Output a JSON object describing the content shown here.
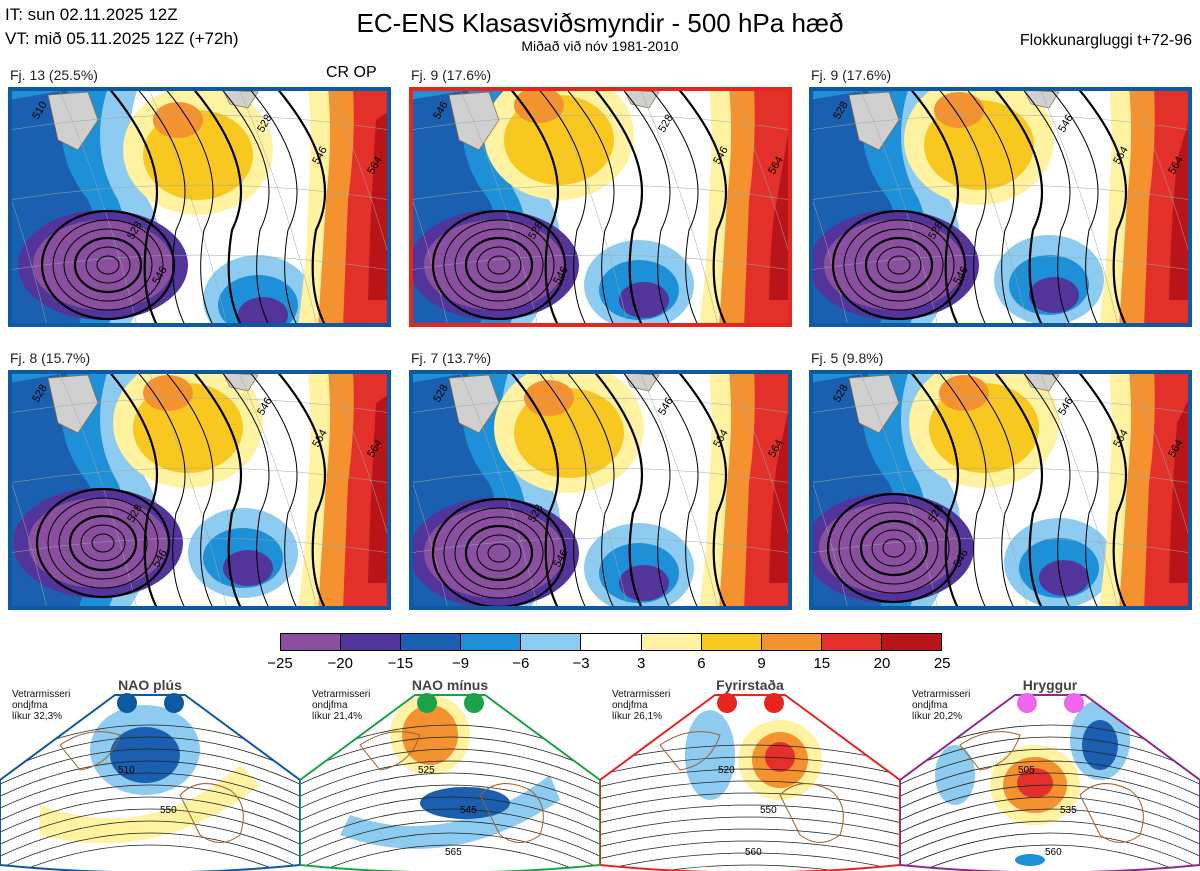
{
  "header": {
    "it_line": "IT: sun 02.11.2025 12Z",
    "vt_line": "VT: mið 05.11.2025 12Z  (+72h)",
    "title": "EC-ENS Klasasviðsmyndir - 500 hPa hæð",
    "subtitle": "Miðað við nóv 1981-2010",
    "right_label": "Flokkunargluggi t+72-96",
    "cr_op": "CR OP"
  },
  "panels": [
    {
      "label": "Fj. 13 (25.5%)",
      "border": "#0b5aa2",
      "contours": [
        "510",
        "528",
        "528",
        "546",
        "546",
        "564"
      ]
    },
    {
      "label": "Fj. 9 (17.6%)",
      "border": "#e8241f",
      "contours": [
        "546",
        "528",
        "528",
        "546",
        "546",
        "564"
      ]
    },
    {
      "label": "Fj. 9 (17.6%)",
      "border": "#0b5aa2",
      "contours": [
        "528",
        "546",
        "528",
        "546",
        "564",
        "564"
      ]
    },
    {
      "label": "Fj. 8 (15.7%)",
      "border": "#0b5aa2",
      "contours": [
        "528",
        "546",
        "528",
        "546",
        "564",
        "564"
      ]
    },
    {
      "label": "Fj. 7 (13.7%)",
      "border": "#0b5aa2",
      "contours": [
        "528",
        "546",
        "528",
        "546",
        "564",
        "564"
      ]
    },
    {
      "label": "Fj. 5 (9.8%)",
      "border": "#0b5aa2",
      "contours": [
        "528",
        "546",
        "528",
        "546",
        "564",
        "564"
      ]
    }
  ],
  "colorbar": {
    "ticks": [
      "−25",
      "−20",
      "−15",
      "−9",
      "−6",
      "−3",
      "3",
      "6",
      "9",
      "15",
      "20",
      "25"
    ],
    "colors": [
      "#8b4fa0",
      "#52349a",
      "#1a5fb0",
      "#1e90d8",
      "#8ecbf0",
      "#ffffff",
      "#fff2a0",
      "#f8c820",
      "#f3922e",
      "#e4302a",
      "#b8141a"
    ]
  },
  "regimes": [
    {
      "name": "NAO plús",
      "info": [
        "Vetrarmisseri",
        "ondjfma",
        "líkur 32,3%"
      ],
      "color": "#0b5aa2",
      "dot": "#0b5aa2",
      "labels": [
        "510",
        "550"
      ]
    },
    {
      "name": "NAO mínus",
      "info": [
        "Vetrarmisseri",
        "ondjfma",
        "líkur 21,4%"
      ],
      "color": "#1ca34a",
      "dot": "#1ca34a",
      "labels": [
        "525",
        "545",
        "565"
      ]
    },
    {
      "name": "Fyrirstaða",
      "info": [
        "Vetrarmisseri",
        "ondjfma",
        "líkur 26,1%"
      ],
      "color": "#e8241f",
      "dot": "#e8241f",
      "labels": [
        "520",
        "550",
        "560"
      ]
    },
    {
      "name": "Hryggur",
      "info": [
        "Vetrarmisseri",
        "ondjfma",
        "líkur 20,2%"
      ],
      "color": "#8e2a8c",
      "dot": "#ee66ee",
      "labels": [
        "505",
        "535",
        "560"
      ]
    }
  ]
}
